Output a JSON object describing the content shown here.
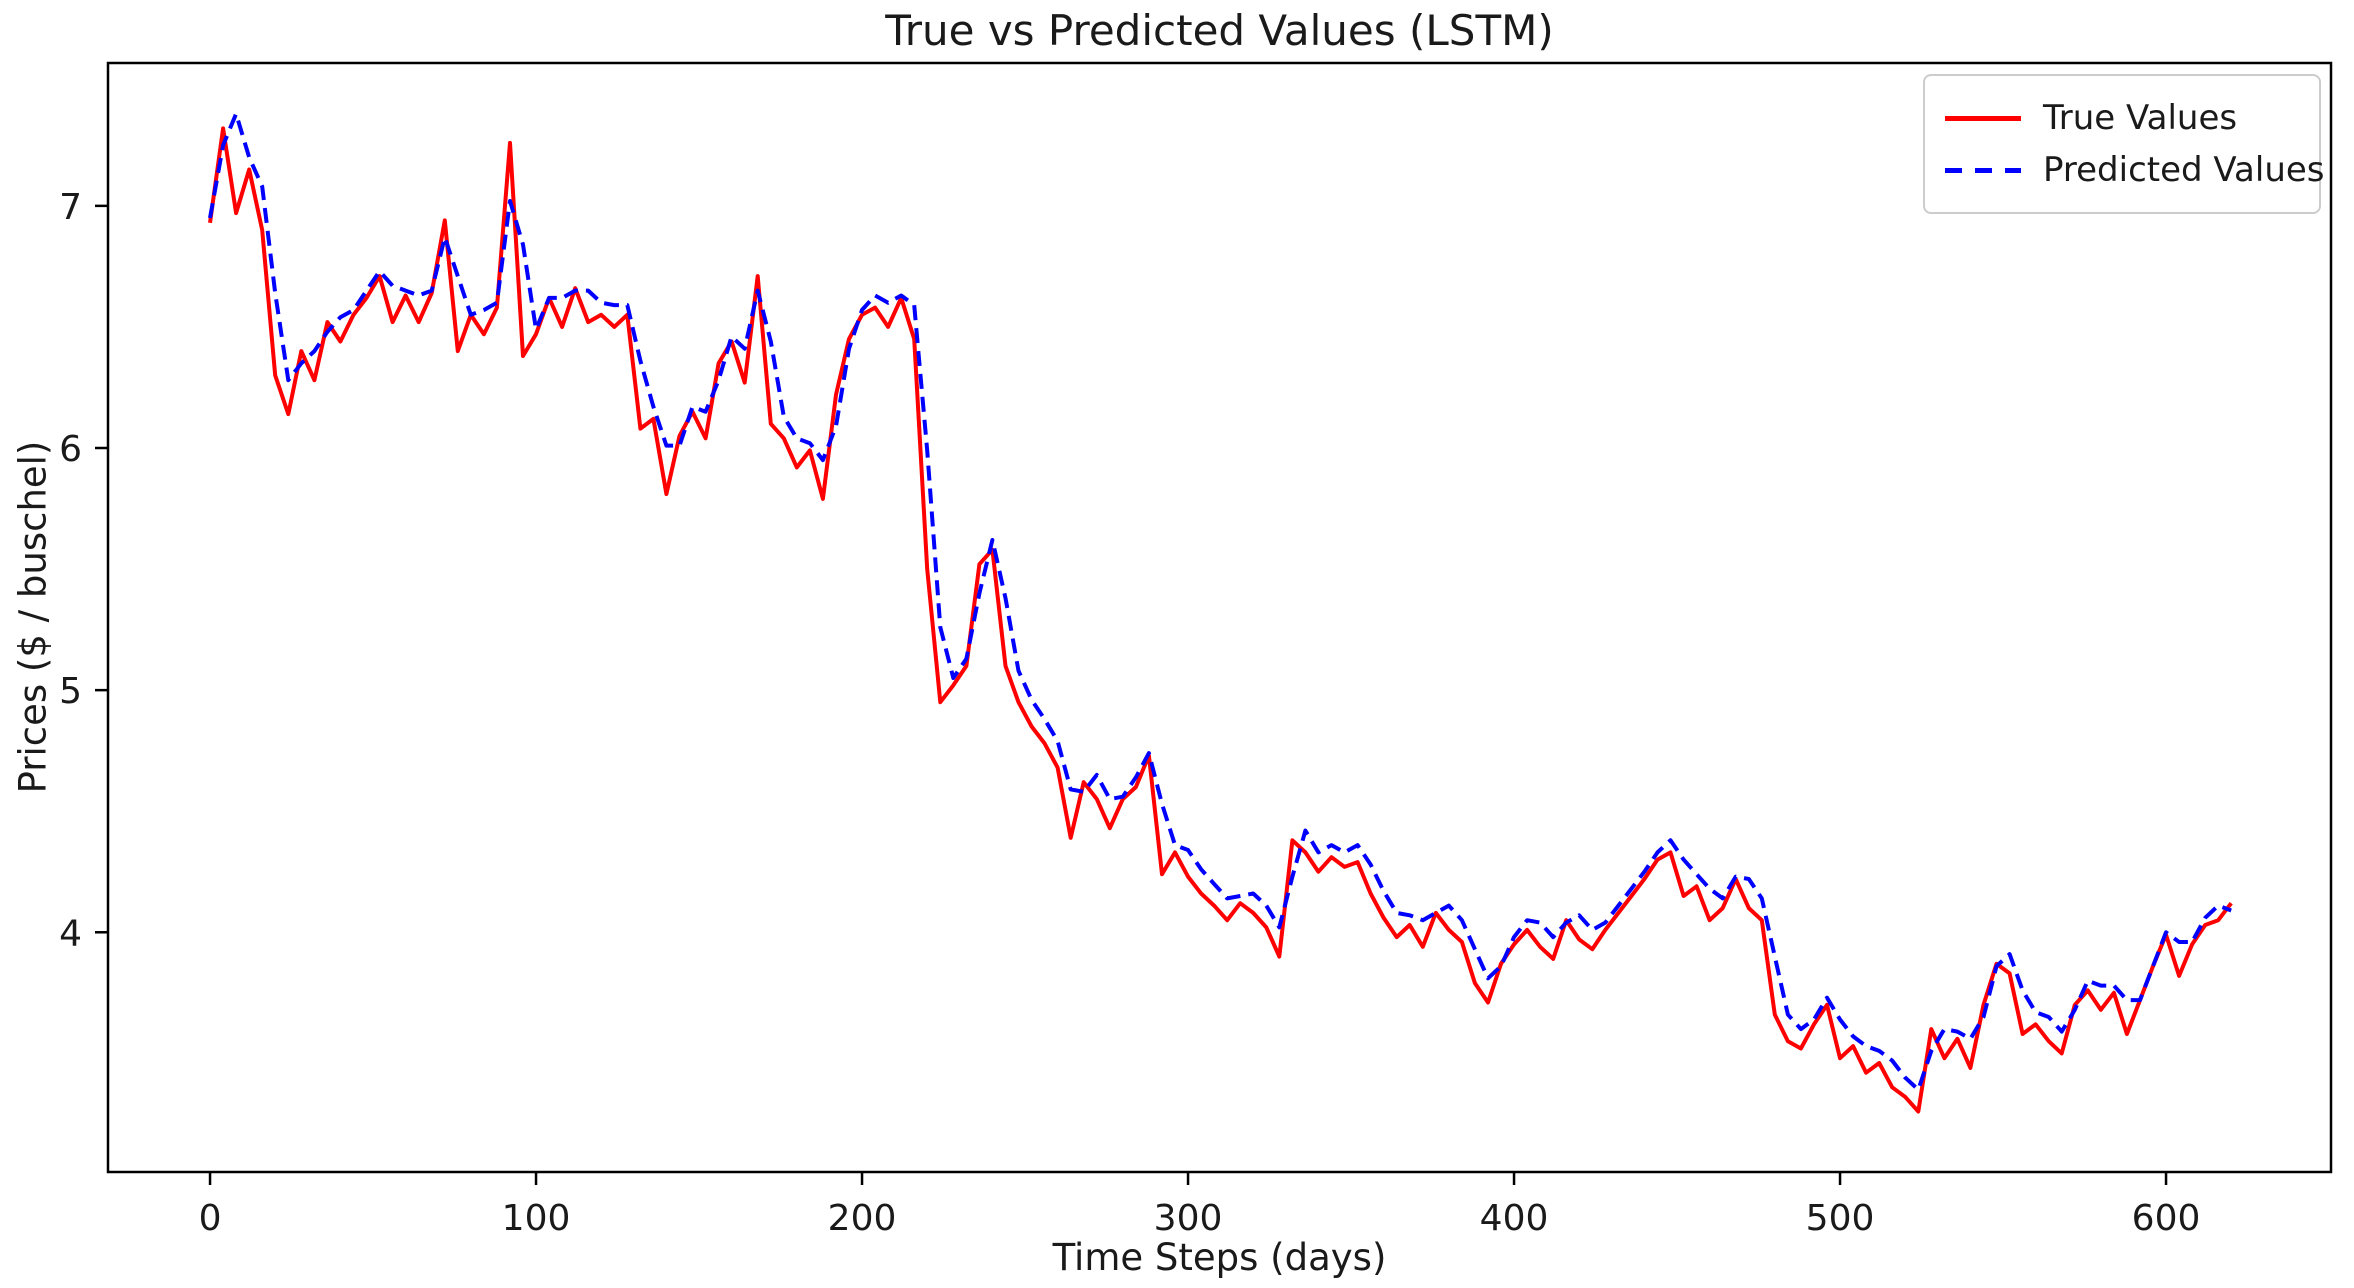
{
  "title": "True vs Predicted Values (LSTM)",
  "axes": {
    "xlabel": "Time Steps (days)",
    "ylabel": "Prices ($ / buschel)",
    "xticks": [
      0,
      100,
      200,
      300,
      400,
      500,
      600
    ],
    "yticks": [
      4,
      5,
      6,
      7
    ]
  },
  "legend": {
    "position": "upper right",
    "entries": [
      {
        "label": "True Values",
        "color": "#ff0000",
        "style": "solid"
      },
      {
        "label": "Predicted Values",
        "color": "#0000ff",
        "style": "dashed"
      }
    ]
  },
  "chart_data": {
    "type": "line",
    "title": "True vs Predicted Values (LSTM)",
    "xlabel": "Time Steps (days)",
    "ylabel": "Prices ($ / buschel)",
    "grid": false,
    "legend_position": "upper right",
    "xlim": [
      -31.3,
      650.6
    ],
    "ylim": [
      3.01,
      7.59
    ],
    "x_start": 0,
    "x_step": 4,
    "series": [
      {
        "name": "True Values",
        "color": "#ff0000",
        "style": "solid",
        "values": [
          6.93,
          7.32,
          6.97,
          7.15,
          6.9,
          6.3,
          6.14,
          6.4,
          6.28,
          6.52,
          6.44,
          6.55,
          6.62,
          6.71,
          6.52,
          6.63,
          6.52,
          6.64,
          6.94,
          6.4,
          6.55,
          6.47,
          6.58,
          7.26,
          6.38,
          6.47,
          6.62,
          6.5,
          6.66,
          6.52,
          6.55,
          6.5,
          6.55,
          6.08,
          6.12,
          5.81,
          6.05,
          6.15,
          6.04,
          6.35,
          6.44,
          6.27,
          6.71,
          6.1,
          6.04,
          5.92,
          5.99,
          5.79,
          6.22,
          6.45,
          6.55,
          6.58,
          6.5,
          6.62,
          6.45,
          5.5,
          4.95,
          5.02,
          5.1,
          5.52,
          5.58,
          5.1,
          4.95,
          4.85,
          4.78,
          4.68,
          4.39,
          4.62,
          4.55,
          4.43,
          4.55,
          4.6,
          4.73,
          4.24,
          4.33,
          4.23,
          4.16,
          4.11,
          4.05,
          4.12,
          4.08,
          4.02,
          3.9,
          4.38,
          4.33,
          4.25,
          4.31,
          4.27,
          4.29,
          4.16,
          4.06,
          3.98,
          4.03,
          3.94,
          4.08,
          4.01,
          3.96,
          3.79,
          3.71,
          3.87,
          3.95,
          4.01,
          3.94,
          3.89,
          4.05,
          3.97,
          3.93,
          4.01,
          4.08,
          4.15,
          4.22,
          4.3,
          4.33,
          4.15,
          4.19,
          4.05,
          4.1,
          4.22,
          4.1,
          4.05,
          3.66,
          3.55,
          3.52,
          3.62,
          3.7,
          3.48,
          3.53,
          3.42,
          3.46,
          3.36,
          3.32,
          3.26,
          3.6,
          3.48,
          3.56,
          3.44,
          3.7,
          3.87,
          3.83,
          3.58,
          3.62,
          3.55,
          3.5,
          3.7,
          3.76,
          3.68,
          3.75,
          3.58,
          3.72,
          3.86,
          3.99,
          3.82,
          3.95,
          4.03,
          4.05,
          4.12
        ]
      },
      {
        "name": "Predicted Values",
        "color": "#0000ff",
        "style": "dashed",
        "values": [
          6.95,
          7.25,
          7.38,
          7.2,
          7.08,
          6.64,
          6.28,
          6.35,
          6.4,
          6.48,
          6.54,
          6.57,
          6.65,
          6.73,
          6.67,
          6.65,
          6.63,
          6.65,
          6.87,
          6.71,
          6.55,
          6.57,
          6.6,
          7.02,
          6.84,
          6.49,
          6.62,
          6.62,
          6.65,
          6.65,
          6.6,
          6.59,
          6.59,
          6.36,
          6.17,
          6.01,
          6.01,
          6.17,
          6.15,
          6.28,
          6.46,
          6.41,
          6.65,
          6.44,
          6.13,
          6.04,
          6.02,
          5.95,
          6.09,
          6.41,
          6.57,
          6.63,
          6.6,
          6.63,
          6.59,
          5.99,
          5.26,
          5.05,
          5.13,
          5.4,
          5.62,
          5.38,
          5.08,
          4.96,
          4.88,
          4.79,
          4.59,
          4.58,
          4.65,
          4.55,
          4.56,
          4.64,
          4.74,
          4.53,
          4.36,
          4.34,
          4.26,
          4.2,
          4.14,
          4.15,
          4.16,
          4.11,
          4.02,
          4.23,
          4.42,
          4.33,
          4.36,
          4.33,
          4.36,
          4.28,
          4.17,
          4.08,
          4.07,
          4.05,
          4.08,
          4.11,
          4.05,
          3.93,
          3.81,
          3.86,
          3.98,
          4.05,
          4.04,
          3.98,
          4.04,
          4.07,
          4.01,
          4.04,
          4.11,
          4.18,
          4.25,
          4.33,
          4.38,
          4.3,
          4.24,
          4.18,
          4.14,
          4.23,
          4.22,
          4.14,
          3.9,
          3.66,
          3.6,
          3.64,
          3.73,
          3.64,
          3.57,
          3.53,
          3.51,
          3.47,
          3.4,
          3.35,
          3.51,
          3.6,
          3.59,
          3.56,
          3.65,
          3.86,
          3.91,
          3.76,
          3.67,
          3.65,
          3.59,
          3.68,
          3.8,
          3.78,
          3.78,
          3.72,
          3.72,
          3.86,
          4.0,
          3.96,
          3.96,
          4.06,
          4.11,
          4.09
        ]
      }
    ]
  }
}
